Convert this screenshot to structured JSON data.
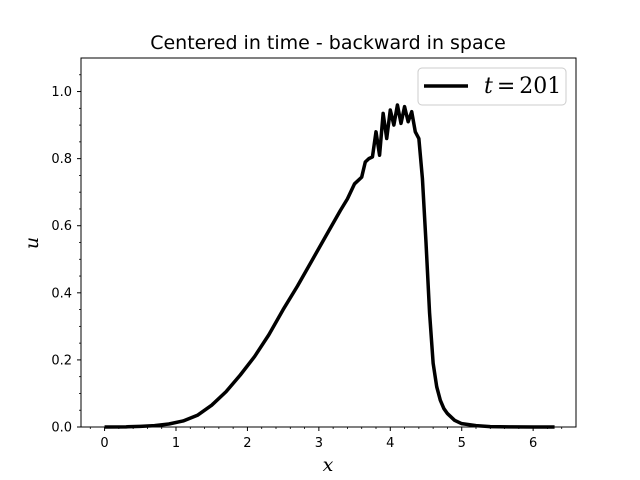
{
  "chart_data": {
    "type": "line",
    "title": "Centered in time - backward in space",
    "xlabel": "x",
    "ylabel": "u",
    "xlim": [
      -0.33,
      6.6
    ],
    "ylim": [
      0.0,
      1.1
    ],
    "xticks": [
      "0",
      "1",
      "2",
      "3",
      "4",
      "5",
      "6"
    ],
    "yticks": [
      "0.0",
      "0.2",
      "0.4",
      "0.6",
      "0.8",
      "1.0"
    ],
    "grid": false,
    "legend_position": "top-right",
    "series": [
      {
        "name": "t = 201",
        "legend_label": {
          "var": "t",
          "op": "=",
          "value": "201"
        },
        "color": "#000000",
        "x": [
          0.0,
          0.3,
          0.5,
          0.7,
          0.9,
          1.1,
          1.3,
          1.5,
          1.7,
          1.9,
          2.1,
          2.3,
          2.5,
          2.7,
          2.9,
          3.1,
          3.3,
          3.4,
          3.5,
          3.6,
          3.65,
          3.7,
          3.75,
          3.8,
          3.85,
          3.9,
          3.95,
          4.0,
          4.05,
          4.1,
          4.15,
          4.2,
          4.25,
          4.3,
          4.35,
          4.4,
          4.45,
          4.5,
          4.55,
          4.6,
          4.65,
          4.7,
          4.75,
          4.8,
          4.9,
          5.0,
          5.2,
          5.4,
          5.7,
          6.0,
          6.3
        ],
        "y": [
          0.0,
          0.0005,
          0.002,
          0.004,
          0.009,
          0.018,
          0.035,
          0.065,
          0.105,
          0.155,
          0.21,
          0.275,
          0.35,
          0.42,
          0.495,
          0.57,
          0.645,
          0.68,
          0.725,
          0.745,
          0.79,
          0.8,
          0.805,
          0.88,
          0.81,
          0.935,
          0.86,
          0.945,
          0.9,
          0.96,
          0.905,
          0.955,
          0.91,
          0.94,
          0.88,
          0.86,
          0.74,
          0.55,
          0.34,
          0.19,
          0.12,
          0.08,
          0.055,
          0.04,
          0.02,
          0.01,
          0.004,
          0.001,
          0.0003,
          0.0001,
          0.0
        ]
      }
    ]
  }
}
